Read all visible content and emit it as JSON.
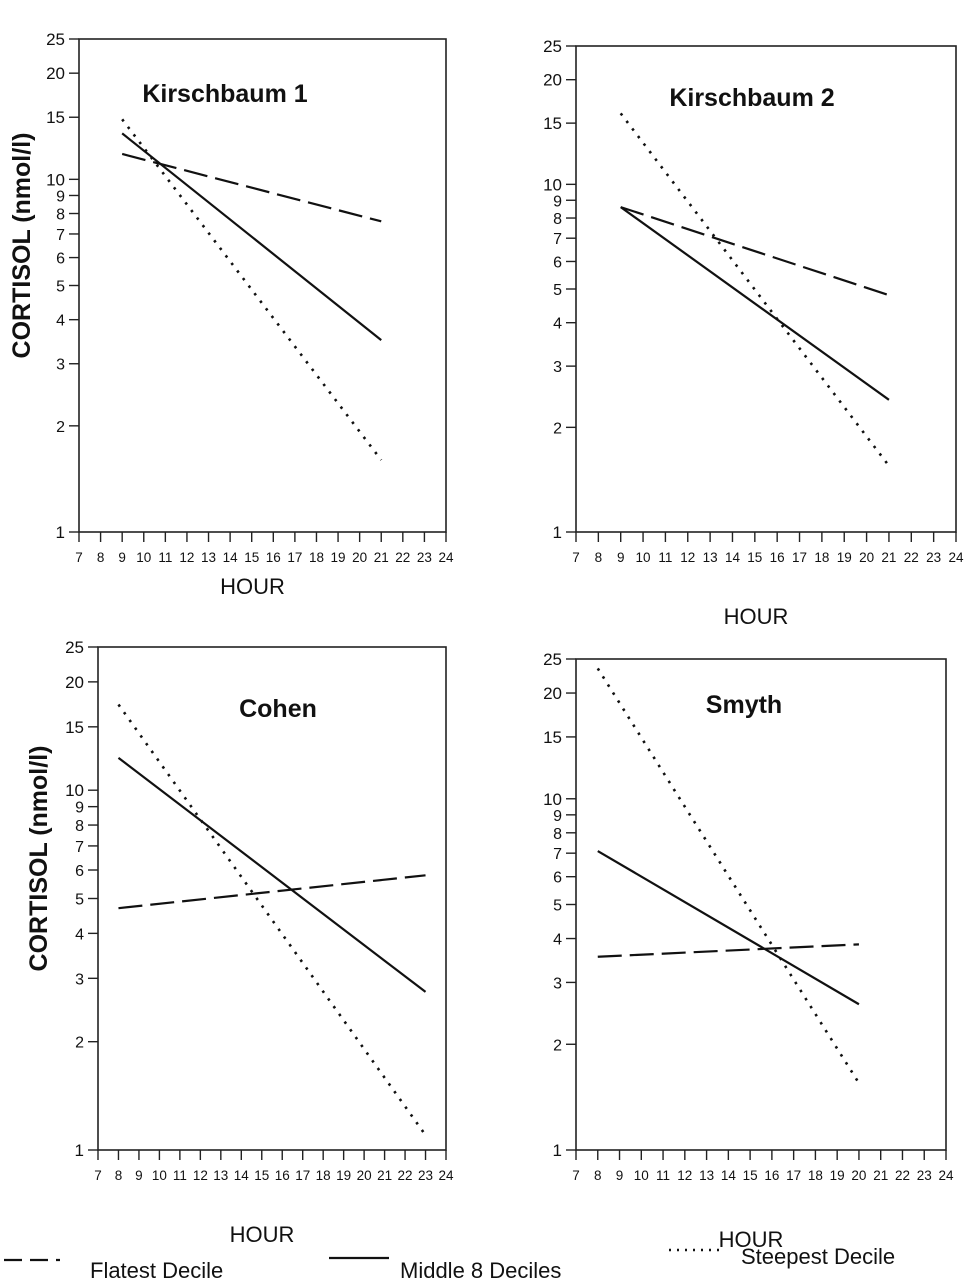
{
  "figure": {
    "y_ticks": [
      1,
      2,
      3,
      4,
      5,
      6,
      7,
      8,
      9,
      10,
      15,
      20,
      25
    ],
    "x_ticks": [
      7,
      8,
      9,
      10,
      11,
      12,
      13,
      14,
      15,
      16,
      17,
      18,
      19,
      20,
      21,
      22,
      23,
      24
    ],
    "colors": {
      "line": "#111111",
      "axis": "#222222",
      "background": "#ffffff"
    }
  },
  "chart_data": [
    {
      "type": "line",
      "title": "Kirschbaum 1",
      "xlabel": "HOUR",
      "ylabel": "CORTISOL (nmol/l)",
      "xlim": [
        7,
        24
      ],
      "ylim": [
        1,
        25
      ],
      "y_scale": "log",
      "series": [
        {
          "name": "Flatest Decile",
          "style": "dashed",
          "x": [
            9,
            21
          ],
          "y": [
            11.8,
            7.6
          ]
        },
        {
          "name": "Middle 8 Deciles",
          "style": "solid",
          "x": [
            9,
            21
          ],
          "y": [
            13.5,
            3.5
          ]
        },
        {
          "name": "Steepest Decile",
          "style": "dotted",
          "x": [
            9,
            21
          ],
          "y": [
            14.8,
            1.6
          ]
        }
      ]
    },
    {
      "type": "line",
      "title": "Kirschbaum 2",
      "xlabel": "HOUR",
      "ylabel": "",
      "xlim": [
        7,
        24
      ],
      "ylim": [
        1,
        25
      ],
      "y_scale": "log",
      "series": [
        {
          "name": "Flatest Decile",
          "style": "dashed",
          "x": [
            9,
            21
          ],
          "y": [
            8.6,
            4.8
          ]
        },
        {
          "name": "Middle 8 Deciles",
          "style": "solid",
          "x": [
            9,
            21
          ],
          "y": [
            8.6,
            2.4
          ]
        },
        {
          "name": "Steepest Decile",
          "style": "dotted",
          "x": [
            9,
            21
          ],
          "y": [
            16.0,
            1.55
          ]
        }
      ]
    },
    {
      "type": "line",
      "title": "Cohen",
      "xlabel": "HOUR",
      "ylabel": "CORTISOL (nmol/l)",
      "xlim": [
        7,
        24
      ],
      "ylim": [
        1,
        25
      ],
      "y_scale": "log",
      "series": [
        {
          "name": "Flatest Decile",
          "style": "dashed",
          "x": [
            8,
            23
          ],
          "y": [
            4.7,
            5.8
          ]
        },
        {
          "name": "Middle 8 Deciles",
          "style": "solid",
          "x": [
            8,
            23
          ],
          "y": [
            12.3,
            2.75
          ]
        },
        {
          "name": "Steepest Decile",
          "style": "dotted",
          "x": [
            8,
            23
          ],
          "y": [
            17.3,
            1.1
          ]
        }
      ]
    },
    {
      "type": "line",
      "title": "Smyth",
      "xlabel": "HOUR",
      "ylabel": "",
      "xlim": [
        7,
        24
      ],
      "ylim": [
        1,
        25
      ],
      "y_scale": "log",
      "series": [
        {
          "name": "Flatest Decile",
          "style": "dashed",
          "x": [
            8,
            20
          ],
          "y": [
            3.55,
            3.85
          ]
        },
        {
          "name": "Middle 8 Deciles",
          "style": "solid",
          "x": [
            8,
            20
          ],
          "y": [
            7.1,
            2.6
          ]
        },
        {
          "name": "Steepest Decile",
          "style": "dotted",
          "x": [
            8,
            20
          ],
          "y": [
            23.5,
            1.55
          ]
        }
      ]
    }
  ],
  "legend": {
    "placement": "bottom",
    "items": [
      {
        "label": "Flatest Decile",
        "style": "dashed"
      },
      {
        "label": "Middle 8 Deciles",
        "style": "solid"
      },
      {
        "label": "Steepest Decile",
        "style": "dotted"
      }
    ]
  }
}
